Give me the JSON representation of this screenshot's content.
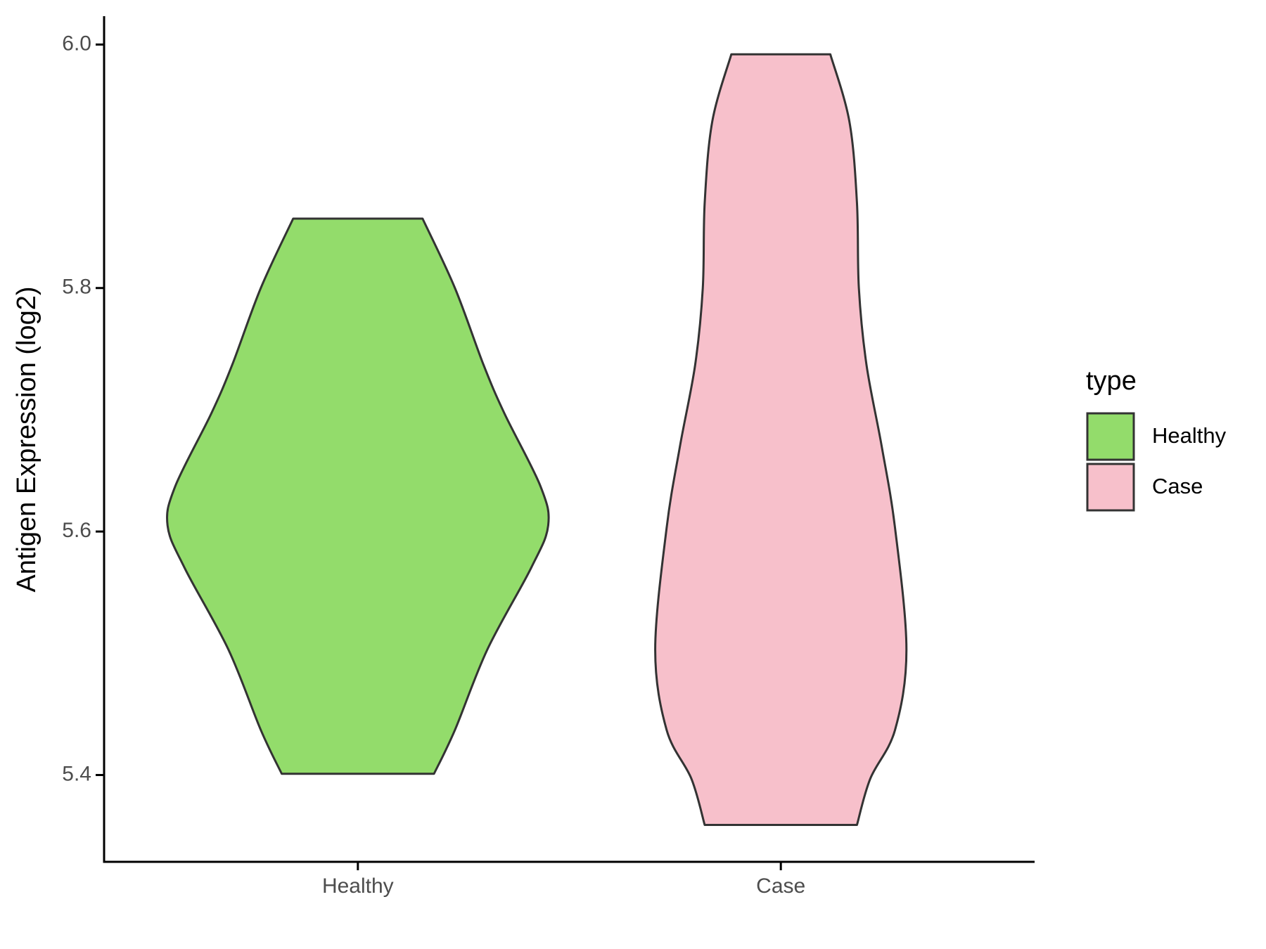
{
  "chart_data": {
    "type": "violin",
    "y_label": "Antigen Expression (log2)",
    "legend_title": "type",
    "categories": [
      "Healthy",
      "Case"
    ],
    "series": [
      {
        "name": "Healthy",
        "color": "#93dc6b",
        "values": [
          5.857,
          5.8,
          5.737,
          5.697,
          5.637,
          5.605,
          5.57,
          5.503,
          5.437,
          5.401
        ],
        "density": [
          0.34,
          0.51,
          0.66,
          0.77,
          0.96,
          1.0,
          0.91,
          0.68,
          0.51,
          0.4
        ]
      },
      {
        "name": "Case",
        "color": "#f7c0cb",
        "values": [
          5.992,
          5.937,
          5.87,
          5.8,
          5.737,
          5.67,
          5.603,
          5.503,
          5.437,
          5.397,
          5.359
        ],
        "density": [
          0.26,
          0.36,
          0.4,
          0.41,
          0.45,
          0.53,
          0.6,
          0.66,
          0.6,
          0.47,
          0.4
        ]
      }
    ],
    "ylim": [
      5.3287,
      6.0233
    ],
    "yticks": [
      {
        "value": 5.4,
        "label": "5.4"
      },
      {
        "value": 5.6,
        "label": "5.6"
      },
      {
        "value": 5.8,
        "label": "5.8"
      },
      {
        "value": 6.0,
        "label": "6.0"
      }
    ],
    "grid": false
  }
}
